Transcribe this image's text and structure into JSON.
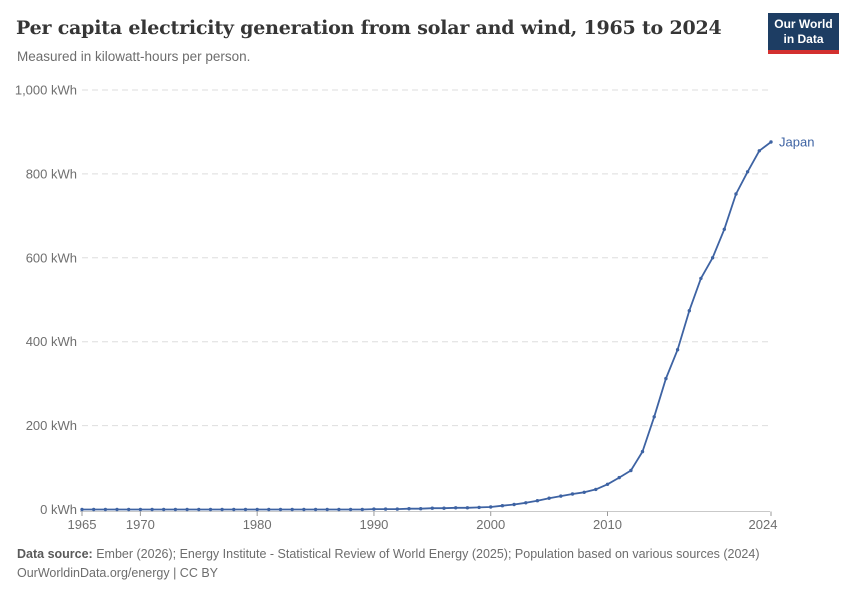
{
  "header": {
    "title": "Per capita electricity generation from solar and wind, 1965 to 2024",
    "subtitle": "Measured in kilowatt-hours per person.",
    "logo": {
      "line1": "Our World",
      "line2": "in Data",
      "bg_color": "#1d3d63",
      "accent_color": "#d3302f"
    }
  },
  "chart_data": {
    "type": "line",
    "title": "Per capita electricity generation from solar and wind, 1965 to 2024",
    "subtitle": "Measured in kilowatt-hours per person.",
    "xlabel": "",
    "ylabel": "",
    "xlim": [
      1965,
      2024
    ],
    "ylim": [
      0,
      1000
    ],
    "grid": "horizontal-dashed",
    "legend_position": "end-of-line-label",
    "end_label": "Japan",
    "x_ticks": [
      1965,
      1970,
      1980,
      1990,
      2000,
      2010,
      2024
    ],
    "y_ticks": [
      0,
      200,
      400,
      600,
      800,
      1000
    ],
    "y_tick_labels": [
      "0 kWh",
      "200 kWh",
      "400 kWh",
      "600 kWh",
      "800 kWh",
      "1,000 kWh"
    ],
    "x": [
      1965,
      1966,
      1967,
      1968,
      1969,
      1970,
      1971,
      1972,
      1973,
      1974,
      1975,
      1976,
      1977,
      1978,
      1979,
      1980,
      1981,
      1982,
      1983,
      1984,
      1985,
      1986,
      1987,
      1988,
      1989,
      1990,
      1991,
      1992,
      1993,
      1994,
      1995,
      1996,
      1997,
      1998,
      1999,
      2000,
      2001,
      2002,
      2003,
      2004,
      2005,
      2006,
      2007,
      2008,
      2009,
      2010,
      2011,
      2012,
      2013,
      2014,
      2015,
      2016,
      2017,
      2018,
      2019,
      2020,
      2021,
      2022,
      2023,
      2024
    ],
    "series": [
      {
        "name": "Japan",
        "color": "#3e63a3",
        "values": [
          0,
          0,
          0,
          0,
          0,
          0,
          0,
          0,
          0,
          0,
          0,
          0,
          0,
          0,
          0,
          0,
          0,
          0,
          0,
          0,
          0,
          0,
          0,
          0,
          0,
          1,
          1,
          1,
          2,
          2,
          3,
          3,
          4,
          4,
          5,
          6,
          9,
          12,
          16,
          21,
          27,
          32,
          37,
          41,
          48,
          60,
          76,
          93,
          138,
          221,
          312,
          381,
          474,
          551,
          600,
          668,
          752,
          805,
          855,
          876
        ]
      }
    ]
  },
  "colors": {
    "line": "#3e63a3",
    "grid": "#dedede",
    "axis": "#c9c9c9",
    "tick": "#9a9a9a",
    "axis_label": "#6f6f6f"
  },
  "footer": {
    "datasource_label": "Data source:",
    "datasource_text": " Ember (2026); Energy Institute - Statistical Review of World Energy (2025); Population based on various sources (2024)",
    "license_text": "OurWorldinData.org/energy | CC BY"
  }
}
